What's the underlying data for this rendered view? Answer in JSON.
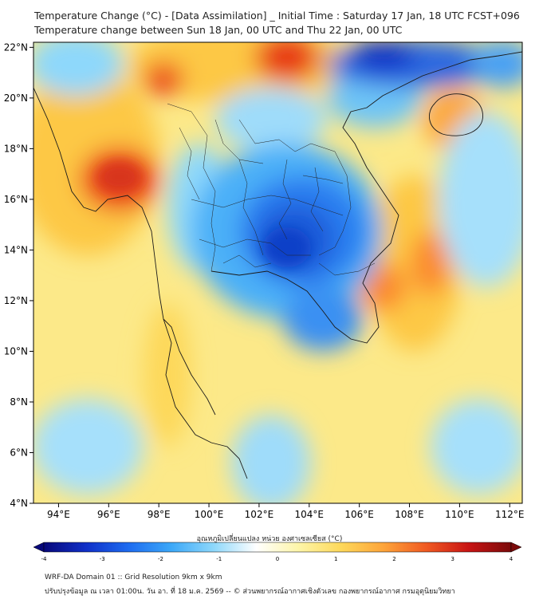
{
  "title_line1": "Temperature Change (°C) - [Data Assimilation] _ Initial Time : Saturday 17 Jan, 18 UTC FCST+096",
  "title_line2": "Temperature change between Sun 18 Jan, 00 UTC and Thu 22 Jan, 00 UTC",
  "axes": {
    "lon_ticks": [
      "94°E",
      "96°E",
      "98°E",
      "100°E",
      "102°E",
      "104°E",
      "106°E",
      "108°E",
      "110°E",
      "112°E"
    ],
    "lat_ticks": [
      "22°N",
      "20°N",
      "18°N",
      "16°N",
      "14°N",
      "12°N",
      "10°N",
      "8°N",
      "6°N",
      "4°N"
    ],
    "lon_range": [
      93,
      112.5
    ],
    "lat_range": [
      4,
      22.2
    ]
  },
  "colorbar": {
    "label": "อุณหภูมิเปลี่ยนแปลง หน่วย องศาเซลเซียส (°C)",
    "ticks": [
      "-4",
      "-3",
      "-2",
      "-1",
      "0",
      "1",
      "2",
      "3",
      "4"
    ],
    "range": [
      -4,
      4
    ],
    "colors": [
      "#08087a",
      "#1030c8",
      "#1e6cf0",
      "#3ca8f8",
      "#8ed8fb",
      "#ffffff",
      "#fdf5a8",
      "#fdd85a",
      "#fda43a",
      "#f05a22",
      "#c81414",
      "#7a0a0a"
    ]
  },
  "footer_line1": "WRF-DA Domain 01 :: Grid Resolution 9km x 9km",
  "footer_line2": "ปรับปรุงข้อมูล ณ เวลา 01:00น. วัน อา. ที่ 18 ม.ค. 2569 -- © ส่วนพยากรณ์อากาศเชิงตัวเลข กองพยากรณ์อากาศ กรมอุตุนิยมวิทยา"
}
